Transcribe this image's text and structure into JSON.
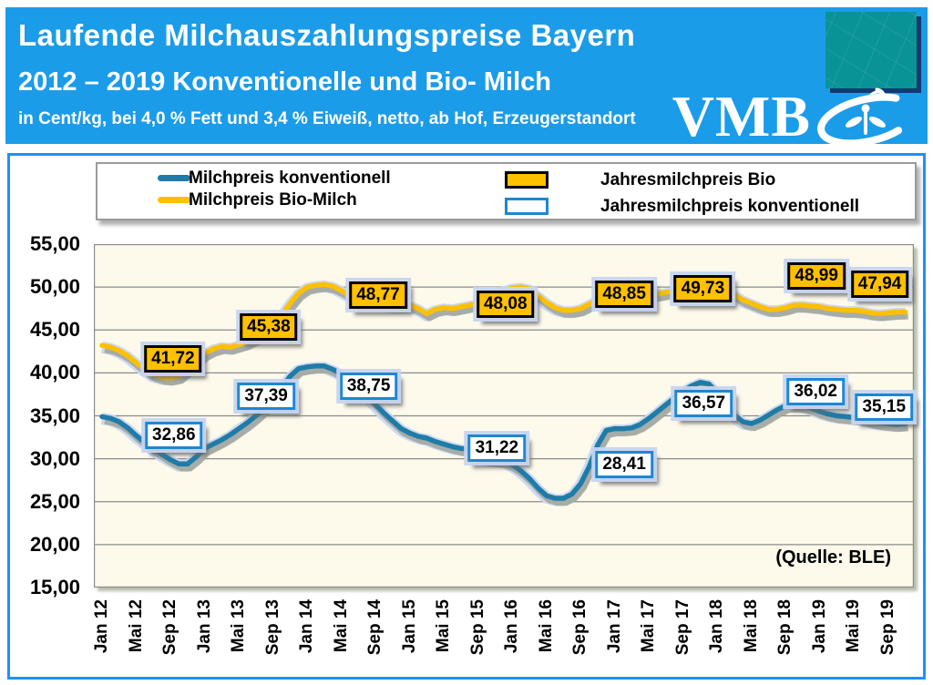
{
  "header": {
    "title": "Laufende Milchauszahlungspreise Bayern",
    "subtitle": "2012 – 2019 Konventionelle und Bio- Milch",
    "note": "in Cent/kg, bei 4,0 % Fett und 3,4 % Eiweiß, netto, ab Hof, Erzeugerstandort",
    "logo_text": "VMB",
    "colors": {
      "banner": "#1B9CE9",
      "flag_teal": "#0A9396"
    }
  },
  "legend": {
    "items": [
      {
        "type": "line",
        "color": "#1F7CA8",
        "label": "Milchpreis konventionell"
      },
      {
        "type": "line",
        "color": "#FFC000",
        "label": "Milchpreis Bio-Milch"
      },
      {
        "type": "box",
        "fill": "#FFC000",
        "border": "#000000",
        "label": "Jahresmilchpreis Bio"
      },
      {
        "type": "box",
        "fill": "#FFFFFF",
        "border": "#1D87D2",
        "label": "Jahresmilchpreis konventionell"
      }
    ]
  },
  "chart_data": {
    "type": "line",
    "title": "Laufende Milchauszahlungspreise Bayern 2012-2019",
    "ylabel": "Cent/kg",
    "ylim": [
      15,
      55
    ],
    "ytick_step": 5,
    "grid": true,
    "plot_bg": "#FDF9EB",
    "y_tick_labels": [
      "55,00",
      "50,00",
      "45,00",
      "40,00",
      "35,00",
      "30,00",
      "25,00",
      "20,00",
      "15,00"
    ],
    "x_tick_labels": [
      "Jan 12",
      "Mai 12",
      "Sep 12",
      "Jan 13",
      "Mai 13",
      "Sep 13",
      "Jan 14",
      "Mai 14",
      "Sep 14",
      "Jan 15",
      "Mai 15",
      "Sep 15",
      "Jan 16",
      "Mai 16",
      "Sep 16",
      "Jan 17",
      "Mai 17",
      "Sep 17",
      "Jan 18",
      "Mai 18",
      "Sep 18",
      "Jan 19",
      "Mai 19",
      "Sep 19"
    ],
    "x_months_per_tick": 4,
    "x_start": "Jan 2012",
    "x_end": "Nov 2019",
    "series": [
      {
        "name": "Milchpreis konventionell",
        "color": "#1F7CA8",
        "values": [
          34.9,
          34.7,
          34.3,
          33.6,
          32.7,
          31.9,
          31.2,
          30.5,
          29.9,
          29.4,
          29.4,
          30.2,
          31.2,
          31.7,
          32.2,
          32.8,
          33.5,
          34.2,
          35.0,
          35.9,
          37.0,
          38.3,
          39.6,
          40.5,
          40.7,
          40.8,
          40.8,
          40.4,
          39.9,
          39.3,
          38.4,
          37.4,
          36.3,
          35.3,
          34.4,
          33.5,
          33.0,
          32.6,
          32.4,
          32.0,
          31.7,
          31.4,
          31.2,
          31.1,
          30.7,
          30.0,
          29.9,
          29.8,
          29.3,
          28.6,
          27.7,
          26.6,
          25.7,
          25.4,
          25.4,
          25.9,
          27.1,
          29.1,
          31.6,
          33.3,
          33.5,
          33.5,
          33.6,
          34.0,
          34.7,
          35.5,
          36.3,
          37.1,
          37.9,
          38.5,
          38.9,
          38.7,
          37.7,
          36.4,
          35.1,
          34.3,
          34.1,
          34.5,
          35.1,
          35.7,
          36.2,
          36.3,
          36.2,
          35.9,
          35.5,
          35.2,
          35.0,
          34.9,
          34.8,
          34.7,
          34.4,
          34.2,
          34.1,
          34.0,
          34.1
        ]
      },
      {
        "name": "Milchpreis Bio-Milch",
        "color": "#FFC000",
        "values": [
          43.2,
          43.0,
          42.6,
          42.0,
          41.2,
          40.4,
          39.8,
          39.5,
          39.4,
          39.6,
          40.4,
          41.4,
          42.3,
          42.8,
          43.1,
          43.0,
          43.3,
          43.6,
          44.1,
          44.7,
          45.5,
          46.7,
          48.1,
          49.3,
          50.0,
          50.2,
          50.3,
          50.1,
          49.6,
          49.0,
          48.5,
          48.2,
          48.0,
          47.9,
          47.8,
          47.8,
          47.9,
          47.5,
          46.9,
          47.4,
          47.6,
          47.5,
          47.7,
          47.9,
          48.1,
          48.3,
          48.9,
          49.6,
          49.9,
          50.0,
          49.8,
          49.0,
          48.2,
          47.6,
          47.3,
          47.3,
          47.5,
          48.0,
          48.6,
          49.0,
          49.2,
          49.3,
          49.2,
          49.1,
          49.1,
          49.2,
          49.4,
          49.5,
          49.6,
          49.7,
          49.8,
          49.8,
          49.7,
          49.5,
          49.1,
          48.5,
          48.1,
          47.7,
          47.4,
          47.4,
          47.6,
          47.9,
          47.9,
          47.8,
          47.7,
          47.5,
          47.4,
          47.3,
          47.3,
          47.2,
          47.0,
          46.9,
          47.0,
          47.1,
          47.1
        ]
      }
    ],
    "annual_labels_bio": [
      {
        "text": "41,72",
        "m": 8.3,
        "v": 41.6
      },
      {
        "text": "45,38",
        "m": 19.5,
        "v": 45.3
      },
      {
        "text": "48,77",
        "m": 32.3,
        "v": 49.1
      },
      {
        "text": "48,08",
        "m": 47.2,
        "v": 48.0
      },
      {
        "text": "48,85",
        "m": 61.1,
        "v": 49.2
      },
      {
        "text": "49,73",
        "m": 70.3,
        "v": 49.8
      },
      {
        "text": "48,99",
        "m": 83.6,
        "v": 51.3
      },
      {
        "text": "47,94",
        "m": 91.0,
        "v": 50.3
      }
    ],
    "annual_labels_konv": [
      {
        "text": "32,86",
        "m": 8.4,
        "v": 32.7
      },
      {
        "text": "37,39",
        "m": 19.2,
        "v": 37.3
      },
      {
        "text": "38,75",
        "m": 31.2,
        "v": 38.4
      },
      {
        "text": "31,22",
        "m": 46.2,
        "v": 31.2
      },
      {
        "text": "28,41",
        "m": 61.1,
        "v": 29.3
      },
      {
        "text": "36,57",
        "m": 70.4,
        "v": 36.4
      },
      {
        "text": "36,02",
        "m": 83.5,
        "v": 37.8
      },
      {
        "text": "35,15",
        "m": 91.5,
        "v": 36.0
      }
    ],
    "source": "(Quelle: BLE)"
  }
}
